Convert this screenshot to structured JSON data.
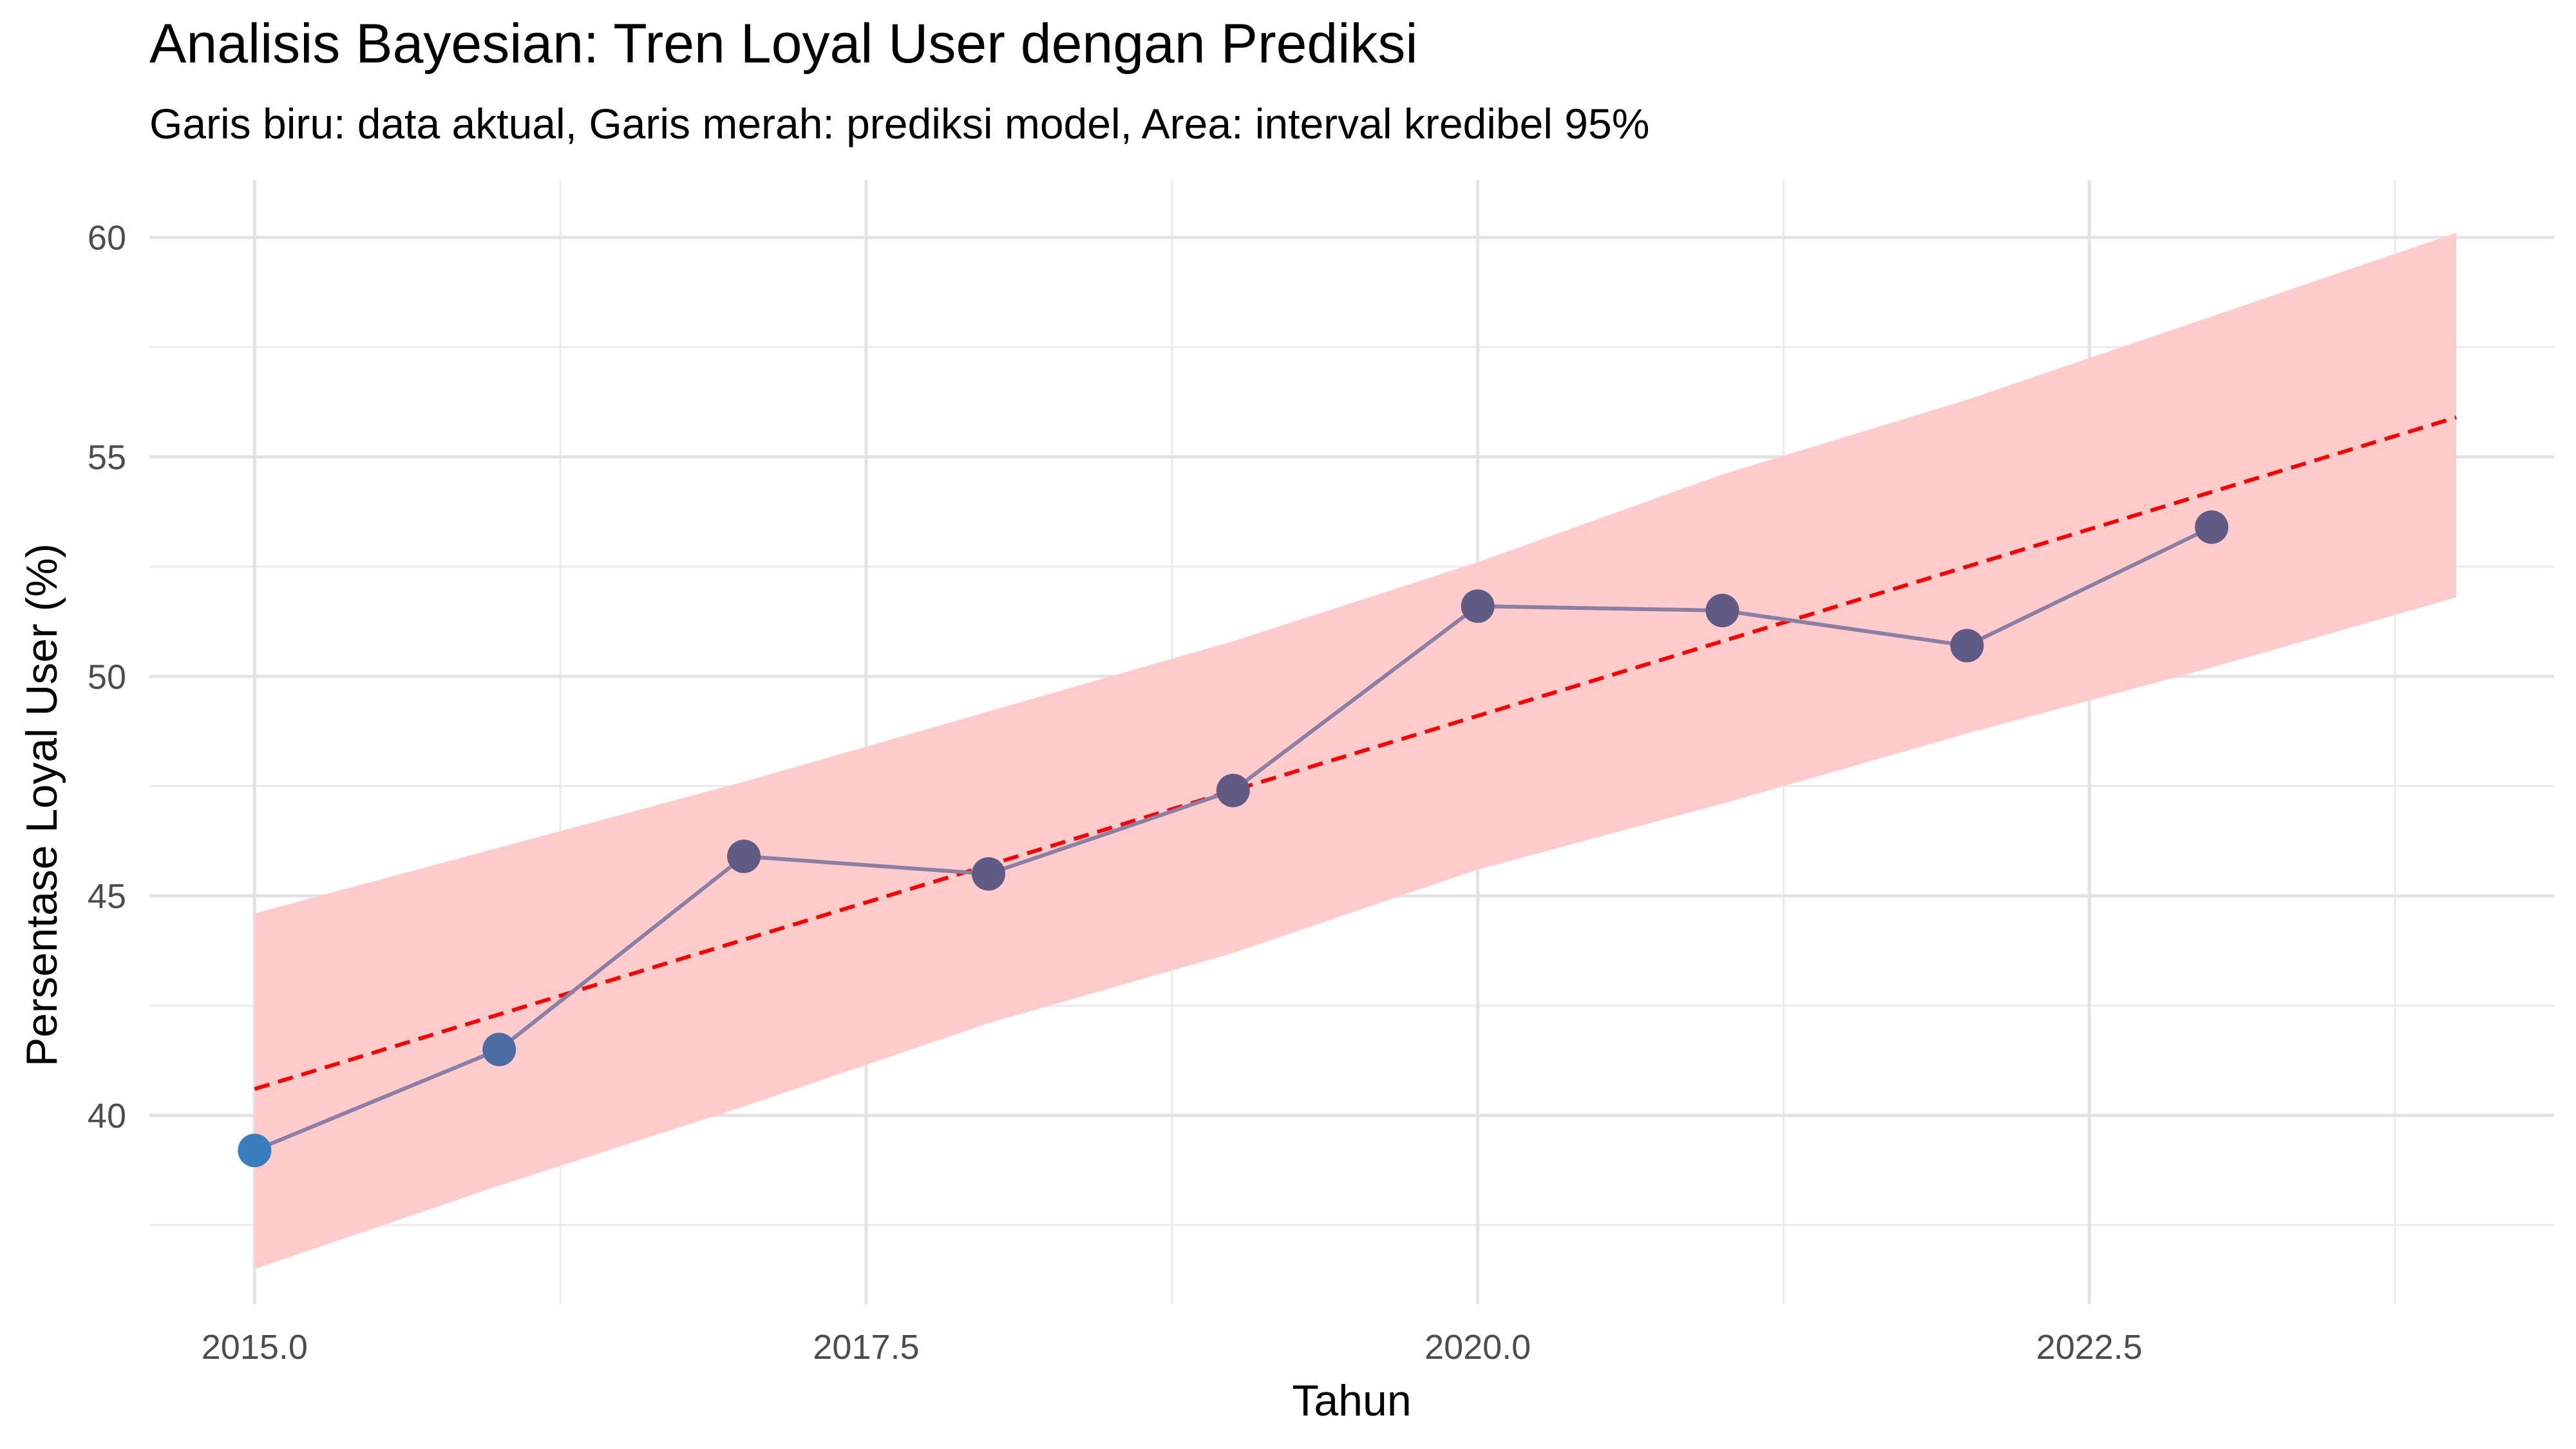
{
  "chart_data": {
    "type": "line",
    "title": "Analisis Bayesian: Tren Loyal User dengan Prediksi",
    "subtitle": "Garis biru: data aktual, Garis merah: prediksi model, Area: interval kredibel 95%",
    "xlabel": "Tahun",
    "ylabel": "Persentase Loyal User (%)",
    "xlim": [
      2014.57,
      2024.4
    ],
    "ylim": [
      35.7,
      61.3
    ],
    "x_ticks": [
      2015.0,
      2017.5,
      2020.0,
      2022.5
    ],
    "x_tick_labels": [
      "2015.0",
      "2017.5",
      "2020.0",
      "2022.5"
    ],
    "y_ticks": [
      40,
      45,
      50,
      55,
      60
    ],
    "y_tick_labels": [
      "40",
      "45",
      "50",
      "55",
      "60"
    ],
    "grid": true,
    "legend": "none",
    "series": [
      {
        "name": "data aktual",
        "color_start": "#3a7dbf",
        "color_end": "#5f5b84",
        "x": [
          2015,
          2016,
          2017,
          2018,
          2019,
          2020,
          2021,
          2022,
          2023
        ],
        "values": [
          39.2,
          41.5,
          45.9,
          45.5,
          47.4,
          51.6,
          51.5,
          50.7,
          53.4
        ]
      },
      {
        "name": "prediksi model",
        "color": "#ff0000",
        "line_style": "dashed",
        "x": [
          2015,
          2024
        ],
        "values": [
          40.6,
          55.9
        ]
      },
      {
        "name": "interval kredibel 95%",
        "color": "#ffcccb",
        "type": "ribbon",
        "x": [
          2015,
          2016,
          2017,
          2018,
          2019,
          2020,
          2021,
          2022,
          2023,
          2024
        ],
        "lower": [
          36.5,
          38.4,
          40.2,
          42.1,
          43.7,
          45.6,
          47.1,
          48.7,
          50.2,
          51.8
        ],
        "upper": [
          44.6,
          46.1,
          47.6,
          49.2,
          50.8,
          52.6,
          54.6,
          56.3,
          58.2,
          60.1
        ]
      }
    ]
  }
}
